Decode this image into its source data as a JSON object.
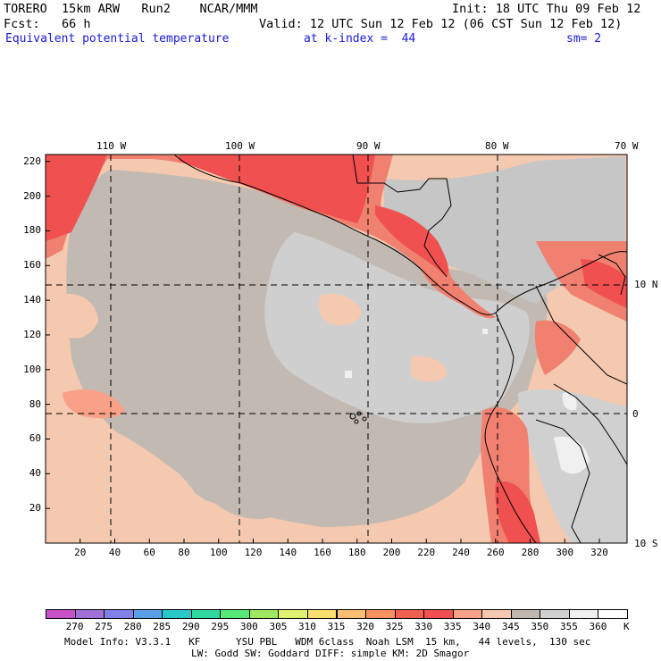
{
  "header": {
    "line1_left": "TORERO  15km ARW   Run2    NCAR/MMM",
    "line1_right": "Init: 18 UTC Thu 09 Feb 12",
    "line2_left": "Fcst:   66 h",
    "line2_right": "Valid: 12 UTC Sun 12 Feb 12 (06 CST Sun 12 Feb 12)",
    "field": "Equivalent potential temperature",
    "level": "at k-index =  44",
    "smoothing": "sm= 2"
  },
  "map": {
    "lon_labels": [
      "110 W",
      "100 W",
      "90 W",
      "80 W",
      "70 W"
    ],
    "lat_labels": [
      "10 N",
      "0",
      "10 S"
    ],
    "x_ticks": [
      "20",
      "40",
      "60",
      "80",
      "100",
      "120",
      "140",
      "160",
      "180",
      "200",
      "220",
      "240",
      "260",
      "280",
      "300",
      "320"
    ],
    "y_ticks": [
      "20",
      "40",
      "60",
      "80",
      "100",
      "120",
      "140",
      "160",
      "180",
      "200",
      "220"
    ],
    "x_range": [
      0,
      336
    ],
    "y_range": [
      0,
      224
    ],
    "grid_lines": true
  },
  "colorbar": {
    "labels": [
      "270",
      "275",
      "280",
      "285",
      "290",
      "295",
      "300",
      "305",
      "310",
      "315",
      "320",
      "325",
      "330",
      "335",
      "340",
      "345",
      "350",
      "355",
      "360"
    ],
    "unit": "K",
    "colors": [
      "#c850c8",
      "#a070d8",
      "#8080e8",
      "#5aa0e8",
      "#28c8c8",
      "#30d8a0",
      "#58e878",
      "#a0e860",
      "#e0f070",
      "#f8e070",
      "#f8c070",
      "#f89060",
      "#f06050",
      "#f05050",
      "#f8a088",
      "#f5c8b0",
      "#c0b8b0",
      "#d0d0d0",
      "#f0f0f0",
      "#ffffff"
    ]
  },
  "footer": {
    "line1": "Model Info: V3.3.1   KF      YSU PBL   WDM 6class  Noah LSM  15 km,   44 levels,  130 sec",
    "line2": "LW: Godd SW: Goddard DIFF: simple KM: 2D Smagor"
  }
}
